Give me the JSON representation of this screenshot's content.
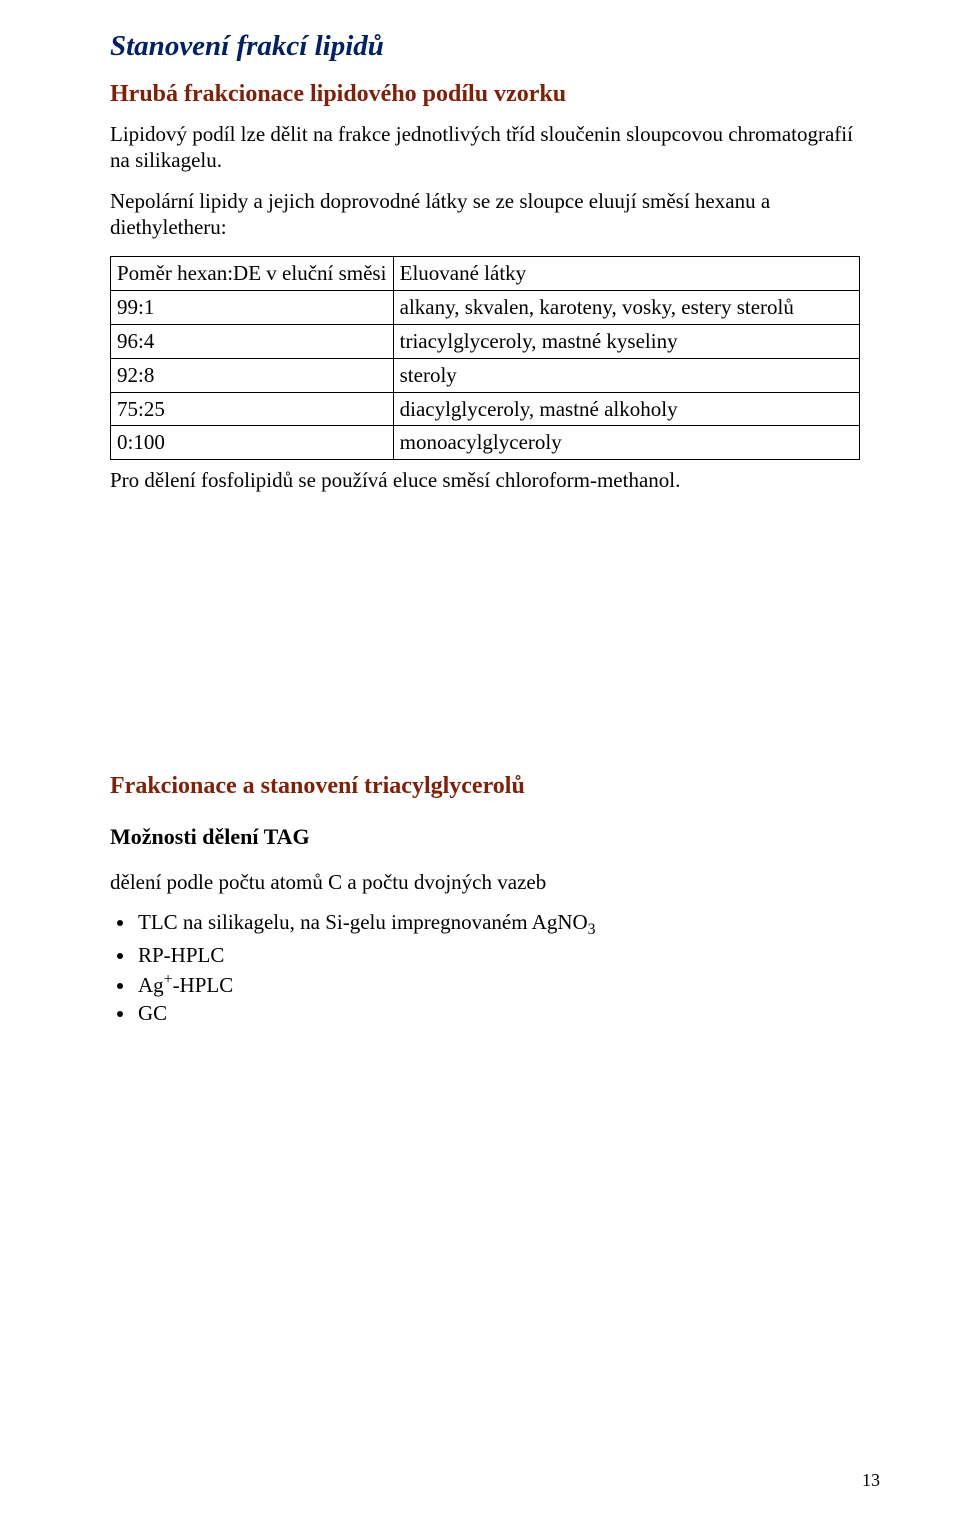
{
  "title": "Stanovení frakcí lipidů",
  "section1_heading": "Hrubá frakcionace lipidového podílu vzorku",
  "para1": "Lipidový podíl lze dělit na frakce jednotlivých tříd sloučenin sloupcovou chromatografií na silikagelu.",
  "para2": "Nepolární lipidy a jejich doprovodné látky se ze sloupce eluují směsí hexanu a diethyletheru:",
  "table": {
    "header_left": "Poměr hexan:DE v eluční směsi",
    "header_right": "Eluované látky",
    "rows": [
      {
        "left": "99:1",
        "right": "alkany, skvalen, karoteny, vosky, estery sterolů"
      },
      {
        "left": "96:4",
        "right": "triacylglyceroly, mastné kyseliny"
      },
      {
        "left": "92:8",
        "right": "steroly"
      },
      {
        "left": "75:25",
        "right": "diacylglyceroly, mastné alkoholy"
      },
      {
        "left": "0:100",
        "right": "monoacylglyceroly"
      }
    ]
  },
  "post_table": "Pro dělení fosfolipidů se používá eluce směsí chloroform-methanol.",
  "section2_heading": "Frakcionace a stanovení triacylglycerolů",
  "section3_heading": "Možnosti dělení TAG",
  "para3": "dělení podle počtu atomů C a počtu dvojných vazeb",
  "bullets": [
    "TLC na silikagelu, na Si-gelu impregnovaném AgNO<sub>3</sub>",
    "RP-HPLC",
    "Ag<sup>+</sup>-HPLC",
    "GC"
  ],
  "page_number": "13",
  "colors": {
    "title_color": "#002163",
    "heading_color": "#802008",
    "text_color": "#000000",
    "background": "#ffffff",
    "border": "#000000"
  }
}
